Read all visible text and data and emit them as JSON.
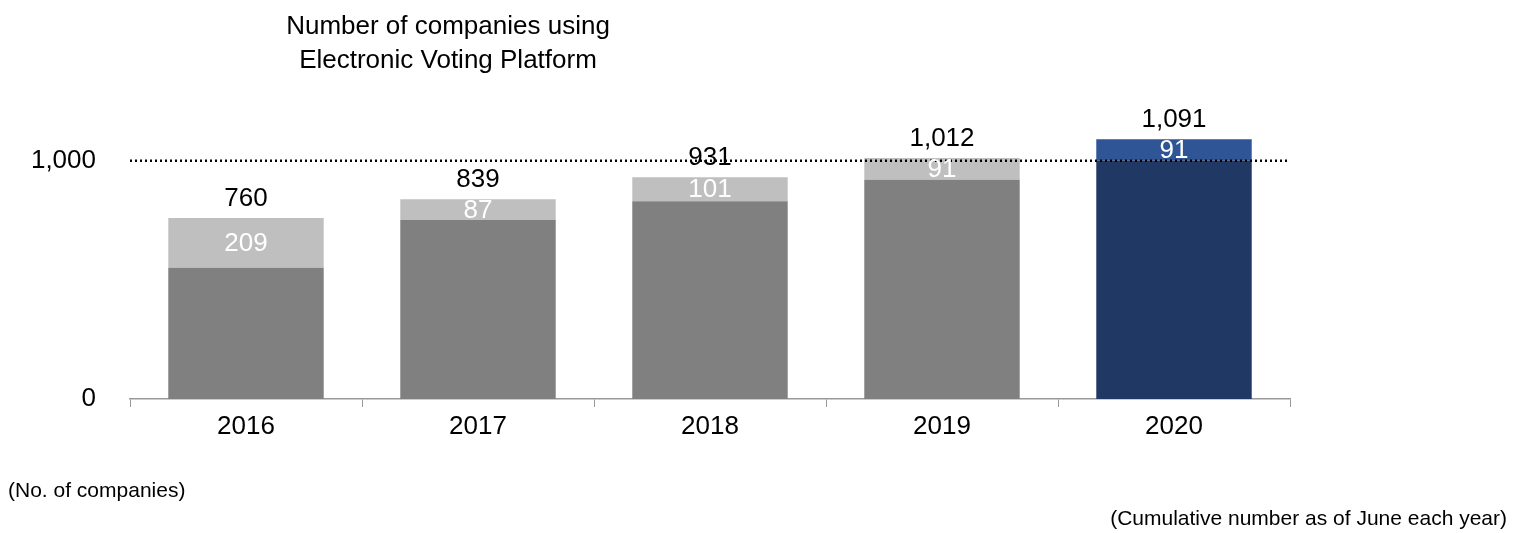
{
  "chart_data": {
    "type": "bar",
    "title": "Number of companies using\nElectronic Voting Platform",
    "categories": [
      "2016",
      "2017",
      "2018",
      "2019",
      "2020"
    ],
    "stacked": true,
    "series": [
      {
        "colors": [
          "#808080",
          "#808080",
          "#808080",
          "#808080",
          "#203864"
        ],
        "values": [
          551,
          752,
          830,
          921,
          1000
        ]
      },
      {
        "colors": [
          "#bfbfbf",
          "#bfbfbf",
          "#bfbfbf",
          "#bfbfbf",
          "#2f5597"
        ],
        "values": [
          209,
          87,
          101,
          91,
          91
        ],
        "value_labels": [
          "209",
          "87",
          "101",
          "91",
          "91"
        ]
      }
    ],
    "totals": [
      "760",
      "839",
      "931",
      "1,012",
      "1,091"
    ],
    "ylim": [
      0,
      1100
    ],
    "yticks": [
      0,
      {
        "value": 1000,
        "label": "1,000"
      }
    ],
    "ref_lines": [
      {
        "axis": "y",
        "value": 1000,
        "color": "#000000",
        "line_style": "dotted"
      }
    ],
    "annotations": [
      "(No. of companies)",
      "(Cumulative number as of June each year)"
    ]
  }
}
